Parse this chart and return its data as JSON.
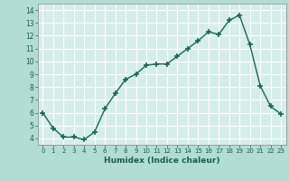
{
  "x": [
    0,
    1,
    2,
    3,
    4,
    5,
    6,
    7,
    8,
    9,
    10,
    11,
    12,
    13,
    14,
    15,
    16,
    17,
    18,
    19,
    20,
    21,
    22,
    23
  ],
  "y": [
    6.0,
    4.8,
    4.1,
    4.1,
    3.9,
    4.5,
    6.3,
    7.5,
    8.6,
    9.0,
    9.7,
    9.8,
    9.8,
    10.4,
    11.0,
    11.6,
    12.3,
    12.1,
    13.2,
    13.6,
    11.3,
    8.1,
    6.5,
    5.9
  ],
  "xlabel": "Humidex (Indice chaleur)",
  "ylim": [
    3.5,
    14.5
  ],
  "xlim": [
    -0.5,
    23.5
  ],
  "yticks": [
    4,
    5,
    6,
    7,
    8,
    9,
    10,
    11,
    12,
    13,
    14
  ],
  "xticks": [
    0,
    1,
    2,
    3,
    4,
    5,
    6,
    7,
    8,
    9,
    10,
    11,
    12,
    13,
    14,
    15,
    16,
    17,
    18,
    19,
    20,
    21,
    22,
    23
  ],
  "line_color": "#1a6655",
  "marker": "+",
  "bg_color": "#b2ddd4",
  "grid_color": "#ffffff",
  "axis_bg_color": "#d6eeea"
}
